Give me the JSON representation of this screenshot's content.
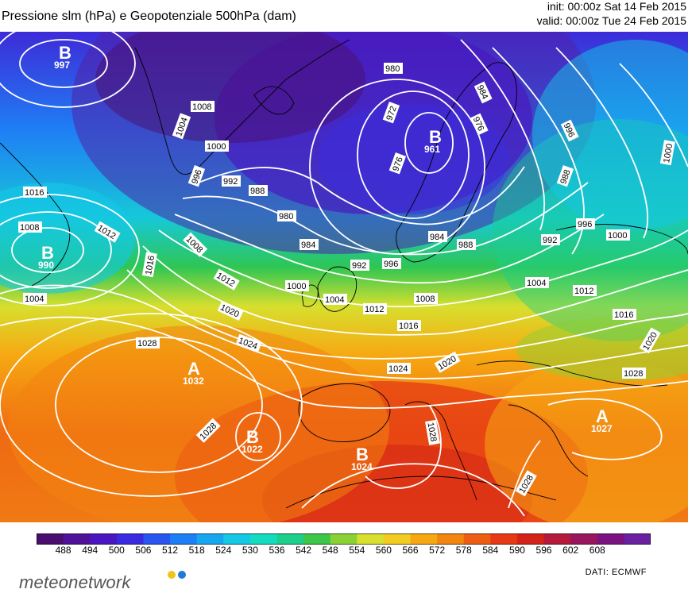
{
  "header": {
    "title": "Pressione slm (hPa) e Geopotenziale 500hPa (dam)",
    "init": "init: 00:00z Sat 14 Feb 2015",
    "valid": "valid: 00:00z Tue 24 Feb 2015"
  },
  "map": {
    "isobar_labels": [
      "997",
      "1008",
      "1004",
      "1000",
      "996",
      "992",
      "988",
      "980",
      "972",
      "976",
      "984",
      "1016",
      "1012",
      "1020",
      "1024",
      "1028",
      "1032",
      "1022",
      "990",
      "961",
      "1000",
      "1016",
      "1020"
    ],
    "centers": [
      {
        "letter": "B",
        "value": "997"
      },
      {
        "letter": "B",
        "value": "990"
      },
      {
        "letter": "B",
        "value": "961"
      },
      {
        "letter": "A",
        "value": "1032"
      },
      {
        "letter": "B",
        "value": "1022"
      },
      {
        "letter": "B",
        "value": "1024"
      },
      {
        "letter": "A",
        "value": "1027"
      }
    ]
  },
  "colorbar": {
    "ticks": [
      "488",
      "494",
      "500",
      "506",
      "512",
      "518",
      "524",
      "530",
      "536",
      "542",
      "548",
      "554",
      "560",
      "566",
      "572",
      "578",
      "584",
      "590",
      "596",
      "602",
      "608"
    ],
    "colors": [
      "#4a0e6e",
      "#50109a",
      "#4a16c0",
      "#3a2be0",
      "#2a55f0",
      "#1d7ef5",
      "#18a6f0",
      "#14c8e6",
      "#14dcc0",
      "#1ccf8a",
      "#3cc64a",
      "#8ad233",
      "#d8df2e",
      "#f2cc20",
      "#f6a812",
      "#f38410",
      "#ee5e12",
      "#e53a14",
      "#d42418",
      "#b51a3a",
      "#99155e",
      "#7a1380",
      "#6a20a0"
    ]
  },
  "footer": {
    "brand": "meteonetwork",
    "brand_dot_colors": [
      "#f0c419",
      "#1f7ad8"
    ],
    "dati": "DATI: ECMWF"
  }
}
